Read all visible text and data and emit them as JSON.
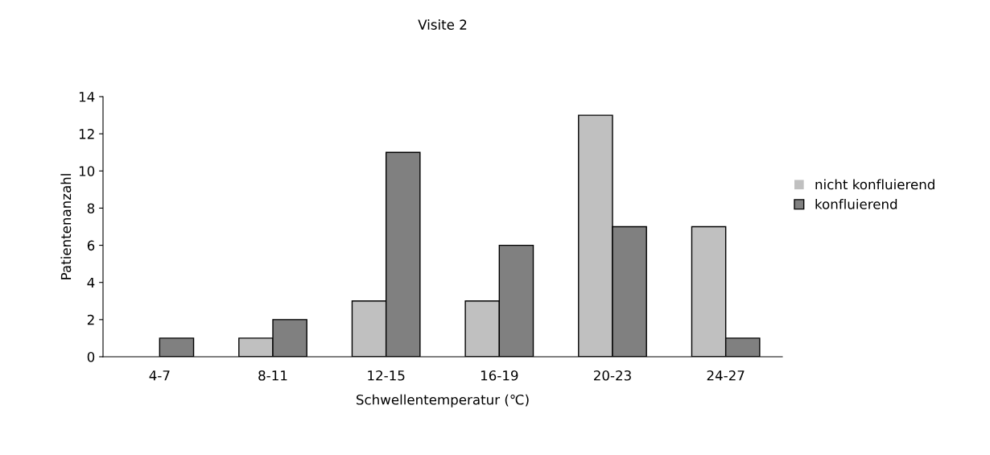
{
  "chart_data": {
    "type": "bar",
    "title": "Visite 2",
    "xlabel": "Schwellentemperatur (℃)",
    "ylabel": "Patientenanzahl",
    "categories": [
      "4-7",
      "8-11",
      "12-15",
      "16-19",
      "20-23",
      "24-27"
    ],
    "series": [
      {
        "name": "nicht konfluierend",
        "color": "#c0c0c0",
        "values": [
          0,
          1,
          3,
          3,
          13,
          7
        ]
      },
      {
        "name": "konfluierend",
        "color": "#808080",
        "values": [
          1,
          2,
          11,
          6,
          7,
          1
        ]
      }
    ],
    "ylim": [
      0,
      14
    ],
    "yticks": [
      0,
      2,
      4,
      6,
      8,
      10,
      12,
      14
    ],
    "grid": false,
    "legend": "right"
  }
}
